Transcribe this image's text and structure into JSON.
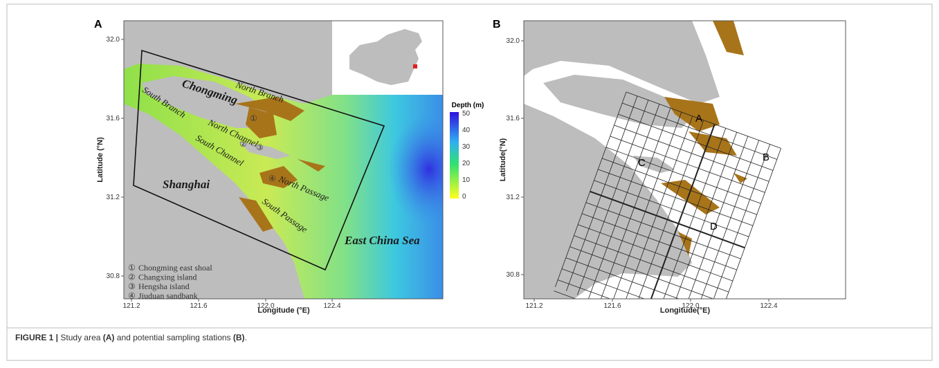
{
  "figure": {
    "caption": [
      "FIGURE 1 |",
      " Study area ",
      "(A)",
      " and potential sampling stations ",
      "(B)",
      "."
    ]
  },
  "panel_a": {
    "label": "A",
    "xlabel": "Longitude (°E)",
    "ylabel": "Latitude (°N)",
    "xticks": [
      "121.2",
      "121.6",
      "122.0",
      "122.4"
    ],
    "yticks": [
      "32.0",
      "31.6",
      "31.2",
      "30.8"
    ],
    "places": {
      "chongming": "Chongming",
      "north_branch": "North Branch",
      "south_branch": "South Branch",
      "north_channel": "North Channel",
      "south_channel": "South Channel",
      "shanghai": "Shanghai",
      "north_passage": "North Passage",
      "south_passage": "South Passage",
      "sea": "East China Sea"
    },
    "markers": [
      "①",
      "②",
      "③",
      "④"
    ],
    "colorbar": {
      "title": "Depth (m)",
      "ticks": [
        50,
        40,
        30,
        20,
        10,
        0
      ]
    },
    "key": [
      {
        "num": "①",
        "label": "Chongming east shoal"
      },
      {
        "num": "②",
        "label": "Changxing island"
      },
      {
        "num": "③",
        "label": "Hengsha island"
      },
      {
        "num": "④",
        "label": "Jiuduan sandbank"
      }
    ]
  },
  "panel_b": {
    "label": "B",
    "xlabel": "Longitude(°E)",
    "ylabel": "Latitude(°N)",
    "xticks": [
      "121.2",
      "121.6",
      "122.0",
      "122.4"
    ],
    "yticks": [
      "32.0",
      "31.6",
      "31.2",
      "30.8"
    ],
    "regions": [
      "A",
      "B",
      "C",
      "D"
    ]
  }
}
